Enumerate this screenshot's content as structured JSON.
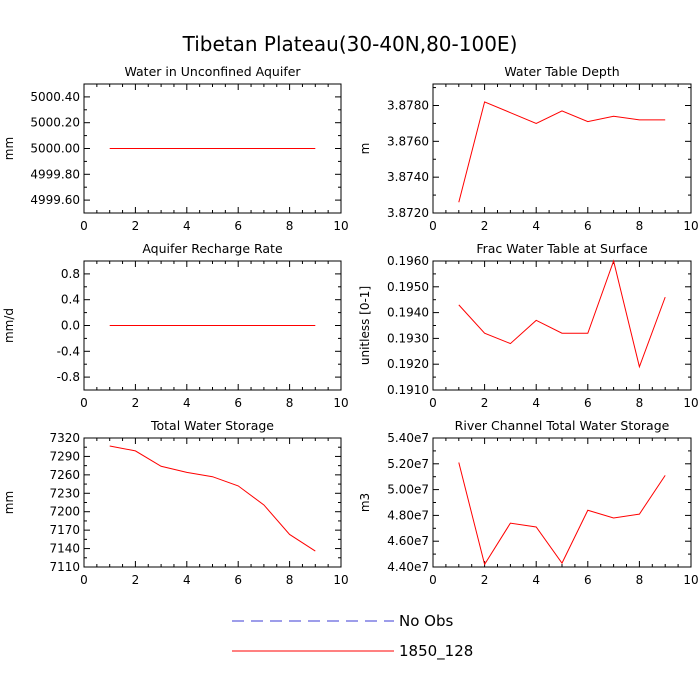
{
  "title": "Tibetan Plateau(30-40N,80-100E)",
  "legend": [
    {
      "label": "No Obs",
      "color": "#3b3bd6",
      "dash": "dashed"
    },
    {
      "label": "1850_128",
      "color": "#ff0000",
      "dash": "solid"
    }
  ],
  "chart_data": [
    {
      "type": "line",
      "title": "Water in Unconfined Aquifer",
      "ylabel": "mm",
      "xlim": [
        0,
        10
      ],
      "ylim": [
        4999.5,
        5000.5
      ],
      "xticks": [
        "0",
        "2",
        "4",
        "6",
        "8",
        "10"
      ],
      "yticks": [
        "4999.60",
        "4999.80",
        "5000.00",
        "5000.20",
        "5000.40"
      ],
      "ytick_values": [
        4999.6,
        4999.8,
        5000.0,
        5000.2,
        5000.4
      ],
      "x": [
        1,
        2,
        3,
        4,
        5,
        6,
        7,
        8,
        9
      ],
      "series": [
        {
          "name": "1850_128",
          "color": "#ff0000",
          "values": [
            5000,
            5000,
            5000,
            5000,
            5000,
            5000,
            5000,
            5000,
            5000
          ]
        }
      ]
    },
    {
      "type": "line",
      "title": "Water Table Depth",
      "ylabel": "m",
      "xlim": [
        0,
        10
      ],
      "ylim": [
        3.872,
        3.8792
      ],
      "xticks": [
        "0",
        "2",
        "4",
        "6",
        "8",
        "10"
      ],
      "yticks": [
        "3.8720",
        "3.8740",
        "3.8760",
        "3.8780"
      ],
      "ytick_values": [
        3.872,
        3.874,
        3.876,
        3.878
      ],
      "x": [
        1,
        2,
        3,
        4,
        5,
        6,
        7,
        8,
        9
      ],
      "series": [
        {
          "name": "1850_128",
          "color": "#ff0000",
          "values": [
            3.8726,
            3.8782,
            3.8776,
            3.877,
            3.8777,
            3.8771,
            3.8774,
            3.8772,
            3.8772
          ]
        }
      ]
    },
    {
      "type": "line",
      "title": "Aquifer Recharge Rate",
      "ylabel": "mm/d",
      "xlim": [
        0,
        10
      ],
      "ylim": [
        -1,
        1
      ],
      "xticks": [
        "0",
        "2",
        "4",
        "6",
        "8",
        "10"
      ],
      "yticks": [
        "-0.8",
        "-0.4",
        "0.0",
        "0.4",
        "0.8"
      ],
      "ytick_values": [
        -0.8,
        -0.4,
        0.0,
        0.4,
        0.8
      ],
      "x": [
        1,
        2,
        3,
        4,
        5,
        6,
        7,
        8,
        9
      ],
      "series": [
        {
          "name": "1850_128",
          "color": "#ff0000",
          "values": [
            0,
            0,
            0,
            0,
            0,
            0,
            0,
            0,
            0
          ]
        }
      ]
    },
    {
      "type": "line",
      "title": "Frac Water Table at Surface",
      "ylabel": "unitless [0-1]",
      "xlim": [
        0,
        10
      ],
      "ylim": [
        0.191,
        0.196
      ],
      "xticks": [
        "0",
        "2",
        "4",
        "6",
        "8",
        "10"
      ],
      "yticks": [
        "0.1910",
        "0.1920",
        "0.1930",
        "0.1940",
        "0.1950",
        "0.1960"
      ],
      "ytick_values": [
        0.191,
        0.192,
        0.193,
        0.194,
        0.195,
        0.196
      ],
      "x": [
        1,
        2,
        3,
        4,
        5,
        6,
        7,
        8,
        9
      ],
      "series": [
        {
          "name": "1850_128",
          "color": "#ff0000",
          "values": [
            0.1943,
            0.1932,
            0.1928,
            0.1937,
            0.1932,
            0.1932,
            0.196,
            0.1919,
            0.1946
          ]
        }
      ]
    },
    {
      "type": "line",
      "title": "Total Water Storage",
      "ylabel": "mm",
      "xlim": [
        0,
        10
      ],
      "ylim": [
        7110,
        7320
      ],
      "xticks": [
        "0",
        "2",
        "4",
        "6",
        "8",
        "10"
      ],
      "yticks": [
        "7110",
        "7140",
        "7170",
        "7200",
        "7230",
        "7260",
        "7290",
        "7320"
      ],
      "ytick_values": [
        7110,
        7140,
        7170,
        7200,
        7230,
        7260,
        7290,
        7320
      ],
      "x": [
        1,
        2,
        3,
        4,
        5,
        6,
        7,
        8,
        9
      ],
      "series": [
        {
          "name": "1850_128",
          "color": "#ff0000",
          "values": [
            7307,
            7299,
            7274,
            7264,
            7257,
            7242,
            7211,
            7163,
            7136
          ]
        }
      ]
    },
    {
      "type": "line",
      "title": "River Channel Total Water Storage",
      "ylabel": "m3",
      "xlim": [
        0,
        10
      ],
      "ylim": [
        44000000,
        54000000
      ],
      "xticks": [
        "0",
        "2",
        "4",
        "6",
        "8",
        "10"
      ],
      "yticks": [
        "4.40e7",
        "4.60e7",
        "4.80e7",
        "5.00e7",
        "5.20e7",
        "5.40e7"
      ],
      "ytick_values": [
        44000000,
        46000000,
        48000000,
        50000000,
        52000000,
        54000000
      ],
      "x": [
        1,
        2,
        3,
        4,
        5,
        6,
        7,
        8,
        9
      ],
      "series": [
        {
          "name": "1850_128",
          "color": "#ff0000",
          "values": [
            52100000,
            44200000,
            47400000,
            47100000,
            44300000,
            48400000,
            47800000,
            48100000,
            51100000
          ]
        }
      ]
    }
  ]
}
